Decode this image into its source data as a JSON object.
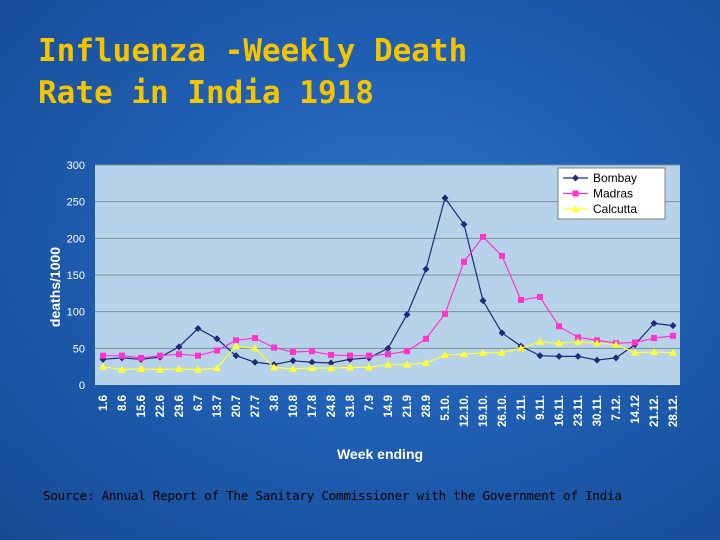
{
  "title": "Influenza -Weekly Death\nRate in India 1918",
  "source": "Source: Annual Report of The Sanitary Commissioner with the Government of India",
  "colors": {
    "title": "#f5c400",
    "plot_bg": "#b7d3ea",
    "grid": "#7a8f9a",
    "axis_text": "#ffffff",
    "Bombay": "#1d2b7a",
    "Madras": "#ff33cc",
    "Calcutta": "#ffff33"
  },
  "chart_data": {
    "type": "line",
    "xlabel": "Week ending",
    "ylabel": "deaths/1000",
    "ylim": [
      0,
      300
    ],
    "yticks": [
      0,
      50,
      100,
      150,
      200,
      250,
      300
    ],
    "grid": true,
    "legend_position": "top-right",
    "categories": [
      "1.6",
      "8.6",
      "15.6",
      "22.6",
      "29.6",
      "6.7",
      "13.7",
      "20.7",
      "27.7",
      "3.8",
      "10.8",
      "17.8",
      "24.8",
      "31.8",
      "7.9",
      "14.9",
      "21.9",
      "28.9",
      "5.10.",
      "12.10.",
      "19.10.",
      "26.10.",
      "2.11.",
      "9.11.",
      "16.11.",
      "23.11.",
      "30.11.",
      "7.12.",
      "14.12",
      "21.12.",
      "28.12."
    ],
    "series": [
      {
        "name": "Bombay",
        "marker": "diamond",
        "values": [
          35,
          37,
          35,
          38,
          52,
          77,
          63,
          40,
          31,
          28,
          33,
          31,
          30,
          35,
          37,
          50,
          96,
          158,
          255,
          219,
          115,
          71,
          53,
          40,
          39,
          39,
          34,
          37,
          55,
          84,
          81
        ]
      },
      {
        "name": "Madras",
        "marker": "square",
        "values": [
          40,
          40,
          37,
          40,
          42,
          40,
          47,
          61,
          64,
          51,
          45,
          46,
          41,
          40,
          40,
          42,
          46,
          63,
          97,
          168,
          202,
          176,
          116,
          120,
          80,
          65,
          61,
          57,
          58,
          64,
          67
        ]
      },
      {
        "name": "Calcutta",
        "marker": "triangle",
        "values": [
          25,
          21,
          22,
          21,
          22,
          21,
          23,
          53,
          50,
          24,
          22,
          23,
          23,
          24,
          24,
          28,
          28,
          30,
          41,
          42,
          44,
          44,
          50,
          59,
          57,
          59,
          57,
          55,
          44,
          45,
          44
        ]
      }
    ]
  }
}
